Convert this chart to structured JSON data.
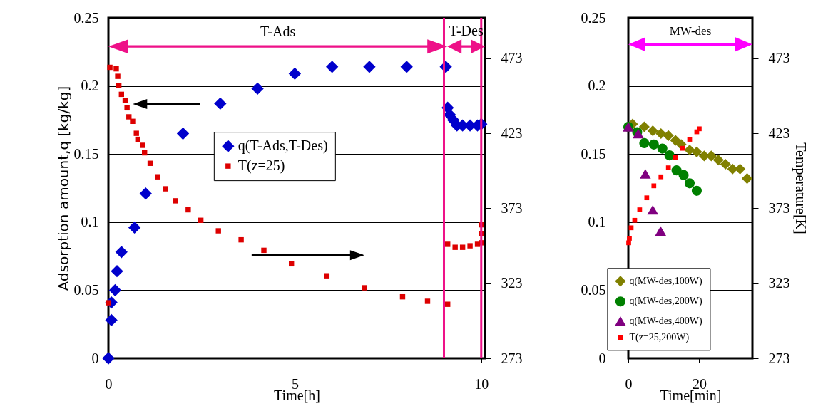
{
  "chart_data": [
    {
      "type": "scatter",
      "xlabel": "Time[h]",
      "ylabel": "Adsorption amount,q [kg/kg]",
      "xlim": [
        0,
        10.1
      ],
      "xticks": [
        0,
        5,
        10
      ],
      "ylim": [
        0,
        0.25
      ],
      "yticks": [
        0,
        0.05,
        0.1,
        0.15,
        0.2,
        0.25
      ],
      "y2lim": [
        273,
        500
      ],
      "y2ticks": [
        273,
        323,
        373,
        423,
        473
      ],
      "grid": "y",
      "legend": "center",
      "series": [
        {
          "name": "q(T-Ads,T-Des)",
          "color": "#0000cc",
          "marker": "diamond",
          "x": [
            0,
            0.08,
            0.08,
            0.18,
            0.23,
            0.35,
            0.7,
            1,
            2,
            3,
            4,
            5,
            6,
            7,
            8,
            9.05,
            9.1,
            9.15,
            9.25,
            9.35,
            9.5,
            9.7,
            9.9,
            10
          ],
          "values": [
            0,
            0.028,
            0.041,
            0.05,
            0.064,
            0.078,
            0.096,
            0.121,
            0.165,
            0.187,
            0.198,
            0.209,
            0.214,
            0.214,
            0.214,
            0.214,
            0.184,
            0.179,
            0.175,
            0.171,
            0.171,
            0.171,
            0.171,
            0.172
          ]
        },
        {
          "name": "T(z=25)",
          "color": "#dd0000",
          "marker": "square",
          "axis": "y2",
          "x": [
            0,
            0.04,
            0.21,
            0.25,
            0.28,
            0.35,
            0.45,
            0.5,
            0.55,
            0.65,
            0.75,
            0.79,
            0.92,
            0.97,
            1.12,
            1.32,
            1.53,
            1.8,
            2.14,
            2.48,
            2.95,
            3.56,
            4.17,
            4.91,
            5.86,
            6.87,
            7.89,
            8.56,
            9.1,
            9.1,
            9.3,
            9.5,
            9.7,
            9.9,
            10,
            10,
            10
          ],
          "values": [
            310,
            467,
            466,
            461,
            455,
            449,
            445,
            440,
            434,
            431,
            423,
            419,
            415,
            410,
            403,
            394,
            386,
            378,
            372,
            365,
            358,
            352,
            345,
            336,
            328,
            320,
            314,
            311,
            309,
            349,
            347,
            347,
            348,
            349,
            350,
            356,
            362
          ]
        }
      ],
      "ref_lines": [
        {
          "axis": "x",
          "value": 9,
          "color": "#ee1188"
        },
        {
          "axis": "x",
          "value": 10,
          "color": "#ee1188"
        }
      ],
      "annotations": [
        "T-Ads",
        "T-Des"
      ]
    },
    {
      "type": "scatter",
      "xlabel": "Time[min]",
      "y2label": "Temperature[K]",
      "xlim": [
        0,
        35
      ],
      "xticks": [
        0,
        20
      ],
      "ylim": [
        0,
        0.25
      ],
      "yticks": [
        0,
        0.05,
        0.1,
        0.15,
        0.2,
        0.25
      ],
      "y2lim": [
        273,
        500
      ],
      "y2ticks": [
        273,
        323,
        373,
        423,
        473
      ],
      "grid": "y",
      "legend": "bottom",
      "series": [
        {
          "name": "q(MW-des,100W)",
          "color": "#808000",
          "marker": "diamond",
          "x": [
            1.2,
            4.5,
            6.9,
            9.2,
            11.3,
            13.3,
            14.9,
            17.3,
            19.3,
            21.4,
            23.4,
            25.4,
            27.4,
            29.4,
            31.5,
            33.5
          ],
          "values": [
            0.172,
            0.17,
            0.167,
            0.165,
            0.1635,
            0.16,
            0.157,
            0.153,
            0.1515,
            0.1486,
            0.1486,
            0.1456,
            0.1425,
            0.139,
            0.139,
            0.132
          ]
        },
        {
          "name": "q(MW-des,200W)",
          "color": "#008000",
          "marker": "circle",
          "x": [
            0,
            2.5,
            4.5,
            7.2,
            9.6,
            11.6,
            13.6,
            15.6,
            17.3,
            19.3
          ],
          "values": [
            0.17,
            0.166,
            0.158,
            0.157,
            0.154,
            0.149,
            0.138,
            0.1346,
            0.1285,
            0.123
          ]
        },
        {
          "name": "q(MW-des,400W)",
          "color": "#800080",
          "marker": "triangle",
          "x": [
            0,
            2.8,
            4.8,
            6.9,
            9.1
          ],
          "values": [
            0.17,
            0.165,
            0.1355,
            0.109,
            0.0935
          ]
        },
        {
          "name": "T(z=25,200W)",
          "color": "#ff0000",
          "marker": "square",
          "axis": "y2",
          "x": [
            0.1,
            0.3,
            0.8,
            1.8,
            3.2,
            5.2,
            7.2,
            9.2,
            11.3,
            13.3,
            15.3,
            17.3,
            19.3,
            20
          ],
          "values": [
            350,
            353,
            360,
            365,
            372,
            380,
            388,
            394,
            400,
            407,
            413,
            419,
            424,
            426
          ]
        }
      ],
      "annotations": [
        "MW-des"
      ]
    }
  ]
}
